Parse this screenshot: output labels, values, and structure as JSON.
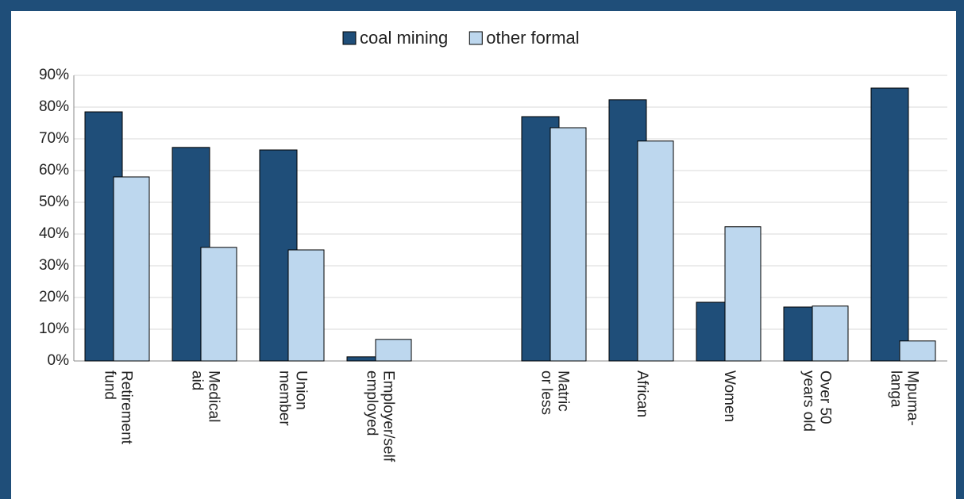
{
  "chart_data": {
    "type": "bar",
    "categories": [
      [
        "Retirement",
        "fund"
      ],
      [
        "Medical",
        "aid"
      ],
      [
        "Union",
        "member"
      ],
      [
        "Employer/self",
        "employed"
      ],
      null,
      [
        "Matric",
        "or less"
      ],
      [
        "African"
      ],
      [
        "Women"
      ],
      [
        "Over 50",
        "years old"
      ],
      [
        "Mpuma-",
        "langa"
      ]
    ],
    "series": [
      {
        "name": "coal mining",
        "color": "#1f4e79",
        "values": [
          78.5,
          67.3,
          66.5,
          1.3,
          null,
          77,
          82.3,
          18.5,
          17,
          86
        ]
      },
      {
        "name": "other formal",
        "color": "#bdd7ee",
        "values": [
          58,
          35.8,
          35,
          6.8,
          null,
          73.5,
          69.3,
          42.3,
          17.3,
          6.3
        ]
      }
    ],
    "ylim": [
      0,
      90
    ],
    "yticks": [
      {
        "value": 0,
        "label": "0%"
      },
      {
        "value": 10,
        "label": "10%"
      },
      {
        "value": 20,
        "label": "20%"
      },
      {
        "value": 30,
        "label": "30%"
      },
      {
        "value": 40,
        "label": "40%"
      },
      {
        "value": 50,
        "label": "50%"
      },
      {
        "value": 60,
        "label": "60%"
      },
      {
        "value": 70,
        "label": "70%"
      },
      {
        "value": 80,
        "label": "80%"
      },
      {
        "value": 90,
        "label": "90%"
      }
    ],
    "grid": true,
    "legend": "top"
  }
}
